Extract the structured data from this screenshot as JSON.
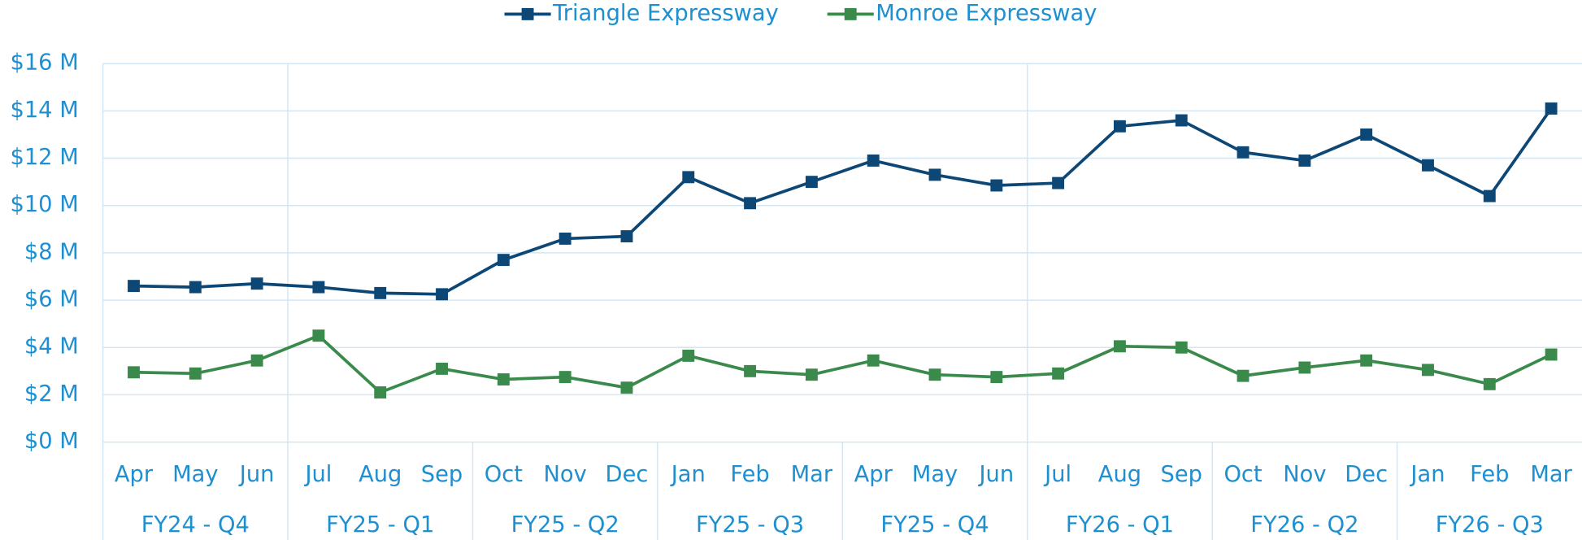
{
  "chart_data": {
    "type": "line",
    "categories": [
      "Apr",
      "May",
      "Jun",
      "Jul",
      "Aug",
      "Sep",
      "Oct",
      "Nov",
      "Dec",
      "Jan",
      "Feb",
      "Mar",
      "Apr",
      "May",
      "Jun",
      "Jul",
      "Aug",
      "Sep",
      "Oct",
      "Nov",
      "Dec",
      "Jan",
      "Feb",
      "Mar"
    ],
    "groups": [
      "FY24 - Q4",
      "FY25 - Q1",
      "FY25 - Q2",
      "FY25 - Q3",
      "FY25 - Q4",
      "FY26 - Q1",
      "FY26 - Q2",
      "FY26 - Q3"
    ],
    "series": [
      {
        "name": "Triangle Expressway",
        "color": "#0d4776",
        "values": [
          6.6,
          6.55,
          6.7,
          6.55,
          6.3,
          6.25,
          7.7,
          8.6,
          8.7,
          11.2,
          10.1,
          11.0,
          11.9,
          11.3,
          10.85,
          10.95,
          13.35,
          13.6,
          12.25,
          11.9,
          13.0,
          11.7,
          10.4,
          14.1
        ]
      },
      {
        "name": "Monroe Expressway",
        "color": "#3a8a4c",
        "values": [
          2.95,
          2.9,
          3.45,
          4.5,
          2.1,
          3.1,
          2.65,
          2.75,
          2.3,
          3.65,
          3.0,
          2.85,
          3.45,
          2.85,
          2.75,
          2.9,
          4.05,
          4.0,
          2.8,
          3.15,
          3.45,
          3.05,
          2.45,
          3.7
        ]
      }
    ],
    "ylim": [
      0,
      16
    ],
    "yticks": [
      {
        "value": 0,
        "label": "$0 M"
      },
      {
        "value": 2,
        "label": "$2 M"
      },
      {
        "value": 4,
        "label": "$4 M"
      },
      {
        "value": 6,
        "label": "$6 M"
      },
      {
        "value": 8,
        "label": "$8 M"
      },
      {
        "value": 10,
        "label": "$10 M"
      },
      {
        "value": 12,
        "label": "$12 M"
      },
      {
        "value": 14,
        "label": "$14 M"
      },
      {
        "value": 16,
        "label": "$16 M"
      }
    ],
    "grid": true,
    "legend": "top"
  }
}
